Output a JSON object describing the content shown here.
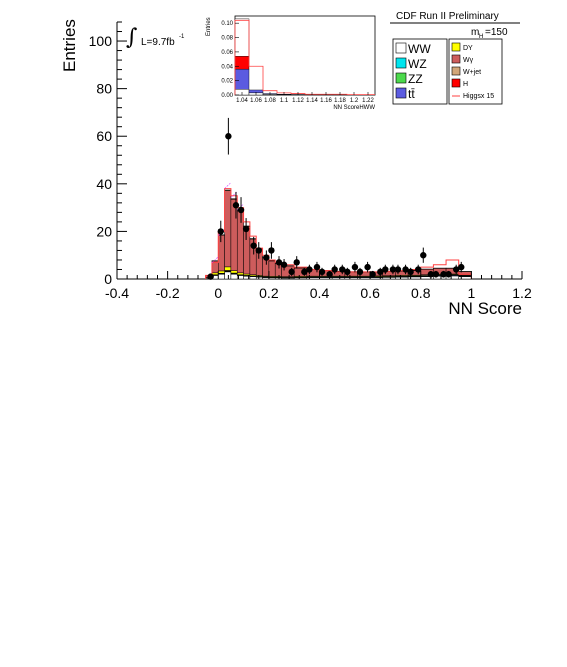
{
  "chart_data": [
    {
      "type": "bar",
      "title": "CDF Run II Preliminary",
      "xlabel": "NN Score",
      "ylabel": "Entries",
      "xlim": [
        -0.4,
        1.2
      ],
      "ylim": [
        0,
        108
      ],
      "x_ticks": [
        "-0.4",
        "-0.2",
        "0",
        "0.2",
        "0.4",
        "0.6",
        "0.8",
        "1",
        "1.2"
      ],
      "y_ticks": [
        "0",
        "20",
        "40",
        "60",
        "80",
        "100"
      ],
      "luminosity_label": "L=9.7fb",
      "luminosity_exponent": "-1",
      "mass_label": "m",
      "mass_subscript": "H",
      "mass_value": "=150",
      "bin_edges": [
        -0.05,
        -0.025,
        0.0,
        0.025,
        0.05,
        0.075,
        0.1,
        0.125,
        0.15,
        0.175,
        0.2,
        0.225,
        0.25,
        0.3,
        0.35,
        0.4,
        0.45,
        0.5,
        0.55,
        0.6,
        0.65,
        0.7,
        0.75,
        0.8,
        0.85,
        0.9,
        0.95,
        1.0
      ],
      "series": [
        {
          "name": "WW",
          "color": "#ffffff",
          "values": [
            0.4,
            1.5,
            2.0,
            3.0,
            2.0,
            1.5,
            1.2,
            1.0,
            0.8,
            0.6,
            0.5,
            0.5,
            0.4,
            0.5,
            0.6,
            0.6,
            0.6,
            0.6,
            0.6,
            0.6,
            0.7,
            0.8,
            0.9,
            1.0,
            1.2,
            1.3,
            1.0
          ]
        },
        {
          "name": "WZ",
          "color": "#00e5ee",
          "values": [
            0.0,
            0.1,
            0.2,
            0.2,
            0.2,
            0.1,
            0.1,
            0.1,
            0.1,
            0.1,
            0.1,
            0.1,
            0.1,
            0.1,
            0.1,
            0.1,
            0.1,
            0.1,
            0.1,
            0.1,
            0.1,
            0.1,
            0.1,
            0.1,
            0.1,
            0.1,
            0.1
          ]
        },
        {
          "name": "ZZ",
          "color": "#4cd94c",
          "values": [
            0.0,
            0.1,
            0.1,
            0.2,
            0.1,
            0.1,
            0.1,
            0.1,
            0.1,
            0.1,
            0.1,
            0.1,
            0.1,
            0.1,
            0.1,
            0.1,
            0.1,
            0.1,
            0.1,
            0.1,
            0.1,
            0.1,
            0.1,
            0.1,
            0.1,
            0.1,
            0.1
          ]
        },
        {
          "name": "tt̄",
          "color": "#5b5be0",
          "values": [
            0.0,
            0.1,
            0.1,
            0.2,
            0.2,
            0.1,
            0.1,
            0.1,
            0.1,
            0.1,
            0.1,
            0.1,
            0.1,
            0.1,
            0.1,
            0.1,
            0.1,
            0.1,
            0.1,
            0.2,
            0.2,
            0.2,
            0.2,
            0.3,
            0.3,
            0.3,
            0.2
          ]
        },
        {
          "name": "DY",
          "color": "#ffff00",
          "values": [
            0.2,
            0.8,
            1.0,
            1.5,
            1.0,
            0.8,
            0.6,
            0.5,
            0.4,
            0.3,
            0.3,
            0.3,
            0.3,
            0.3,
            0.3,
            0.3,
            0.3,
            0.3,
            0.3,
            0.3,
            0.3,
            0.3,
            0.3,
            0.3,
            0.3,
            0.3,
            0.2
          ]
        },
        {
          "name": "Wγ",
          "color": "#cd5c5c",
          "values": [
            0.8,
            5.0,
            15.0,
            32.0,
            30.0,
            26.0,
            20.0,
            15.0,
            11.0,
            8.0,
            6.5,
            5.5,
            4.5,
            3.5,
            2.8,
            2.3,
            2.0,
            1.8,
            1.7,
            1.6,
            1.7,
            1.8,
            2.0,
            2.3,
            2.5,
            2.4,
            1.5
          ]
        },
        {
          "name": "W+jet",
          "color": "#d2a679",
          "values": [
            0.0,
            0.1,
            0.2,
            0.3,
            0.3,
            0.2,
            0.2,
            0.2,
            0.2,
            0.1,
            0.1,
            0.1,
            0.1,
            0.1,
            0.1,
            0.1,
            0.1,
            0.1,
            0.1,
            0.1,
            0.1,
            0.1,
            0.1,
            0.1,
            0.1,
            0.1,
            0.1
          ]
        },
        {
          "name": "H",
          "color": "#ff0000",
          "values": [
            0.0,
            0.0,
            0.0,
            0.0,
            0.0,
            0.0,
            0.0,
            0.0,
            0.0,
            0.0,
            0.0,
            0.0,
            0.0,
            0.0,
            0.0,
            0.0,
            0.0,
            0.0,
            0.0,
            0.0,
            0.0,
            0.0,
            0.0,
            0.0,
            0.0,
            0.0,
            0.0
          ]
        }
      ],
      "signal": {
        "name": "Higgsx 15",
        "color": "#ff4040",
        "values": [
          1.5,
          7.0,
          20.0,
          38.0,
          35.0,
          30.0,
          24.0,
          18.0,
          13.0,
          10.0,
          8.0,
          7.0,
          6.0,
          5.0,
          4.0,
          3.5,
          3.0,
          3.0,
          3.0,
          3.0,
          3.2,
          3.5,
          4.0,
          5.0,
          6.0,
          8.0,
          2.0
        ]
      },
      "data_points": {
        "x": [
          -0.03,
          0.01,
          0.04,
          0.07,
          0.09,
          0.11,
          0.14,
          0.16,
          0.19,
          0.21,
          0.24,
          0.26,
          0.29,
          0.31,
          0.34,
          0.36,
          0.39,
          0.41,
          0.44,
          0.46,
          0.49,
          0.51,
          0.54,
          0.56,
          0.59,
          0.61,
          0.64,
          0.66,
          0.69,
          0.71,
          0.74,
          0.76,
          0.79,
          0.81,
          0.84,
          0.86,
          0.89,
          0.91,
          0.94,
          0.96
        ],
        "y": [
          1,
          20,
          60,
          31,
          29,
          21,
          14,
          12,
          9,
          12,
          7,
          6,
          3,
          7,
          3,
          4,
          5,
          3,
          2,
          4,
          4,
          3,
          5,
          3,
          5,
          2,
          3,
          4,
          4,
          4,
          4,
          3,
          4,
          10,
          2,
          2,
          2,
          2,
          4,
          5
        ],
        "err": [
          1,
          4.5,
          7.7,
          5.6,
          5.4,
          4.6,
          3.7,
          3.5,
          3,
          3.5,
          2.6,
          2.4,
          1.7,
          2.6,
          1.7,
          2,
          2.2,
          1.7,
          1.4,
          2,
          2,
          1.7,
          2.2,
          1.7,
          2.2,
          1.4,
          1.7,
          2,
          2,
          2,
          2,
          1.7,
          2,
          3.2,
          1.4,
          1.4,
          1.4,
          1.4,
          2,
          2.2
        ]
      },
      "legend": {
        "left": [
          {
            "label": "WW",
            "color": "#ffffff"
          },
          {
            "label": "WZ",
            "color": "#00e5ee"
          },
          {
            "label": "ZZ",
            "color": "#4cd94c"
          },
          {
            "label": "tt̄",
            "color": "#5b5be0"
          }
        ],
        "right": [
          {
            "label": "DY",
            "color": "#ffff00"
          },
          {
            "label": "Wγ",
            "color": "#cd5c5c"
          },
          {
            "label": "W+jet",
            "color": "#d2a679"
          },
          {
            "label": "H",
            "color": "#ff0000"
          },
          {
            "label": "Higgsx 15",
            "color": "#ff4040",
            "style": "line"
          }
        ]
      }
    },
    {
      "type": "bar",
      "xlabel": "NN ScoreHWW",
      "ylabel": "Entries",
      "x_ticks": [
        "1.04",
        "1.06",
        "1.08",
        "1.1",
        "1.12",
        "1.14",
        "1.16",
        "1.18",
        "1.2",
        "1.22"
      ],
      "y_ticks": [
        "0.00",
        "0.02",
        "0.04",
        "0.06",
        "0.08",
        "0.10"
      ],
      "ylim": [
        0,
        0.11
      ],
      "bin_edges": [
        1.03,
        1.05,
        1.07,
        1.09,
        1.11,
        1.13,
        1.15,
        1.17,
        1.19,
        1.21,
        1.23
      ],
      "series": [
        {
          "name": "WW",
          "color": "#ffffff",
          "values": [
            0.008,
            0.003,
            0.001,
            0.0005,
            0.0005,
            0.0002,
            0.0002,
            0.0001,
            0.0001,
            0.0001
          ]
        },
        {
          "name": "tt̄",
          "color": "#5b5be0",
          "values": [
            0.028,
            0.004,
            0.001,
            0.0005,
            0.0002,
            0.0,
            0.0,
            0.0,
            0.0,
            0.0
          ]
        },
        {
          "name": "H",
          "color": "#ff0000",
          "values": [
            0.018,
            0.0,
            0.0,
            0.0,
            0.0,
            0.0,
            0.0,
            0.0,
            0.0,
            0.0
          ]
        },
        {
          "name": "WW",
          "color": "#ffffff",
          "values": [
            0.052,
            0.0,
            0.0,
            0.0,
            0.0,
            0.0,
            0.0,
            0.0,
            0.0,
            0.0
          ]
        }
      ],
      "signal": {
        "name": "Higgsx 15",
        "color": "#ff4040",
        "values": [
          0.104,
          0.04,
          0.006,
          0.003,
          0.002,
          0.001,
          0.001,
          0.001,
          0.0005,
          0.0005
        ]
      }
    }
  ]
}
